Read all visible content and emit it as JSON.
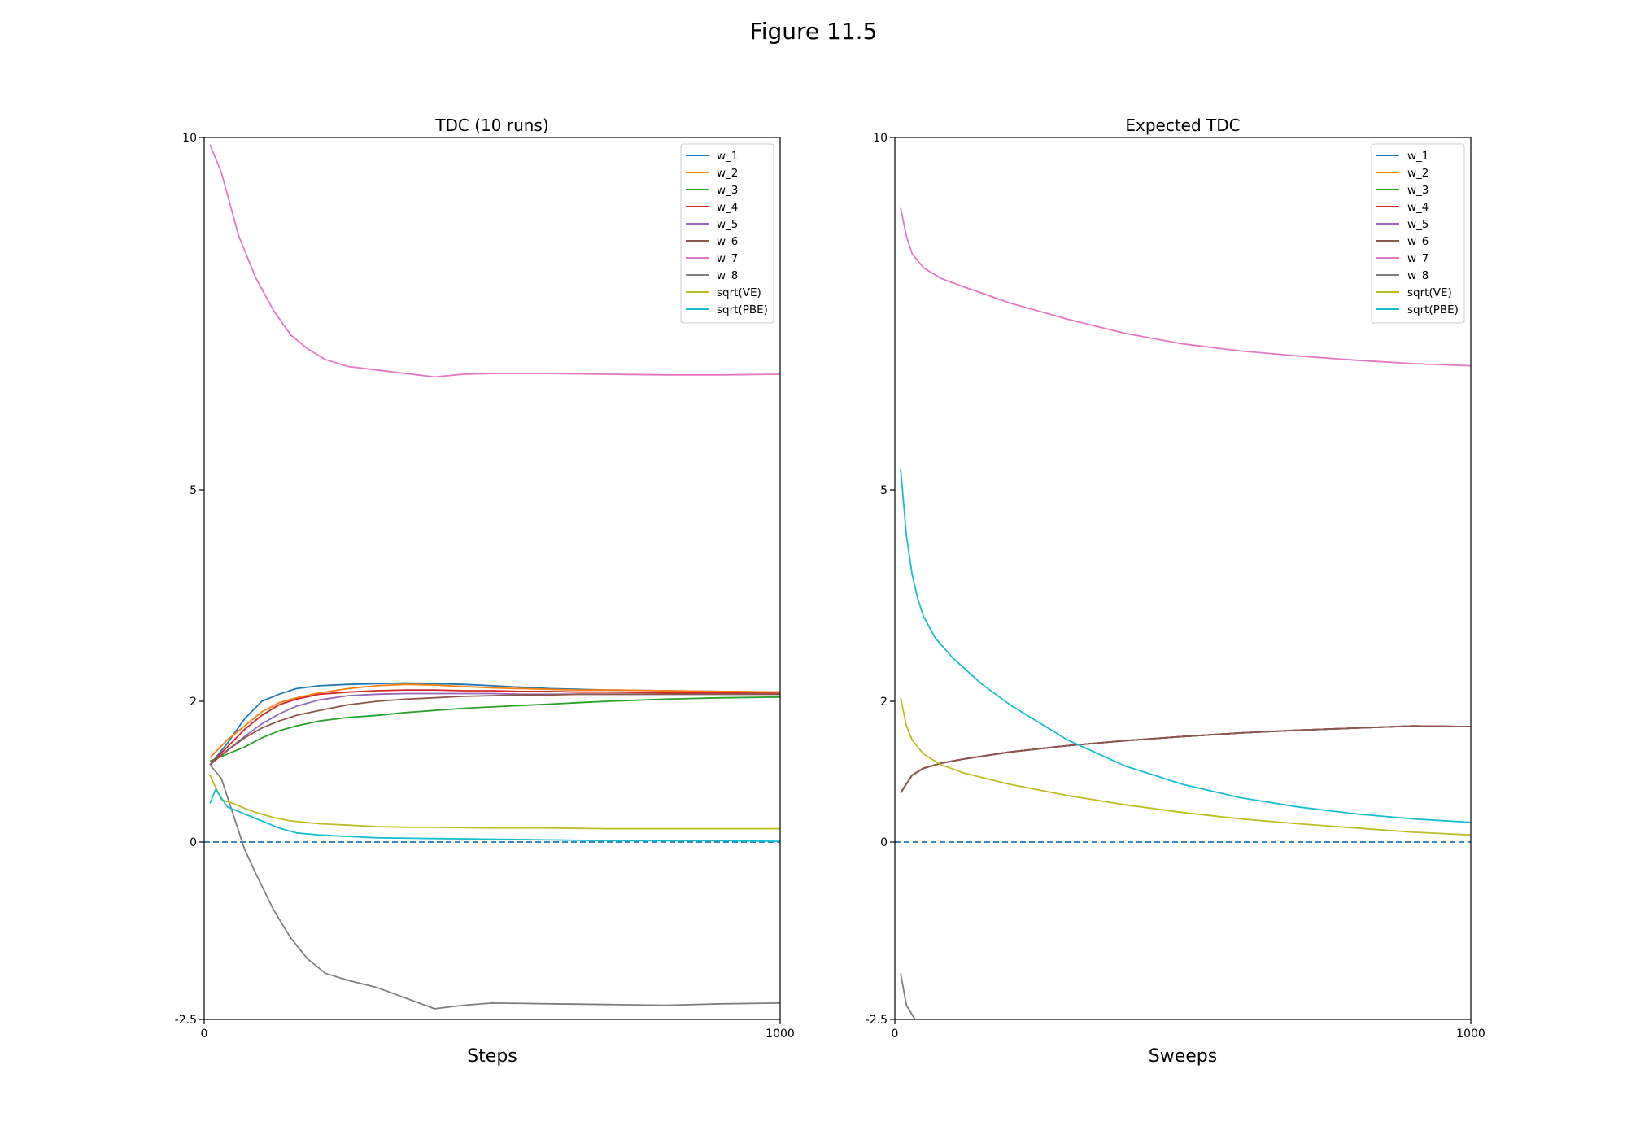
{
  "figure": {
    "title": "Figure 11.5"
  },
  "colors": {
    "w_1": "#1f77b4",
    "w_2": "#ff7f0e",
    "w_3": "#2ca02c",
    "w_4": "#d62728",
    "w_5": "#9467bd",
    "w_6": "#8c564b",
    "w_7": "#e377c2",
    "w_8": "#7f7f7f",
    "sqrt(VE)": "#bcbd22",
    "sqrt(PBE)": "#17becf",
    "zero_line": "#1f77b4"
  },
  "chart_data": [
    {
      "type": "line",
      "title": "TDC (10 runs)",
      "xlabel": "Steps",
      "ylabel": "",
      "xlim": [
        0,
        1000
      ],
      "ylim": [
        -2.5,
        10
      ],
      "xticks": [
        0,
        1000
      ],
      "yticks": [
        -2.5,
        0,
        2,
        5,
        10
      ],
      "ytick_labels": [
        "-2.5",
        "0",
        "2",
        "5",
        "10"
      ],
      "legend": [
        "w_1",
        "w_2",
        "w_3",
        "w_4",
        "w_5",
        "w_6",
        "w_7",
        "w_8",
        "sqrt(VE)",
        "sqrt(PBE)"
      ],
      "legend_position": "top-right",
      "reference_line": {
        "y": 0,
        "style": "dashed"
      },
      "series": [
        {
          "name": "w_1",
          "x": [
            10,
            40,
            70,
            100,
            130,
            160,
            200,
            250,
            300,
            350,
            400,
            450,
            500,
            550,
            600,
            650,
            700,
            800,
            900,
            1000
          ],
          "values": [
            1.1,
            1.4,
            1.75,
            2.0,
            2.1,
            2.18,
            2.22,
            2.24,
            2.25,
            2.26,
            2.25,
            2.24,
            2.22,
            2.2,
            2.18,
            2.17,
            2.16,
            2.15,
            2.14,
            2.13
          ]
        },
        {
          "name": "w_2",
          "x": [
            10,
            40,
            70,
            100,
            130,
            160,
            200,
            250,
            300,
            350,
            400,
            450,
            500,
            550,
            600,
            650,
            700,
            800,
            900,
            1000
          ],
          "values": [
            1.2,
            1.45,
            1.65,
            1.85,
            1.98,
            2.05,
            2.12,
            2.18,
            2.22,
            2.24,
            2.23,
            2.21,
            2.19,
            2.18,
            2.17,
            2.16,
            2.16,
            2.15,
            2.14,
            2.13
          ]
        },
        {
          "name": "w_3",
          "x": [
            10,
            40,
            70,
            100,
            130,
            160,
            200,
            250,
            300,
            350,
            400,
            450,
            500,
            550,
            600,
            650,
            700,
            800,
            900,
            1000
          ],
          "values": [
            1.15,
            1.25,
            1.35,
            1.48,
            1.58,
            1.65,
            1.72,
            1.77,
            1.8,
            1.84,
            1.87,
            1.9,
            1.92,
            1.94,
            1.96,
            1.98,
            2.0,
            2.03,
            2.05,
            2.06
          ]
        },
        {
          "name": "w_4",
          "x": [
            10,
            40,
            70,
            100,
            130,
            160,
            200,
            250,
            300,
            350,
            400,
            450,
            500,
            550,
            600,
            650,
            700,
            800,
            900,
            1000
          ],
          "values": [
            1.1,
            1.35,
            1.6,
            1.8,
            1.95,
            2.03,
            2.1,
            2.13,
            2.15,
            2.16,
            2.16,
            2.15,
            2.15,
            2.14,
            2.14,
            2.13,
            2.13,
            2.12,
            2.12,
            2.11
          ]
        },
        {
          "name": "w_5",
          "x": [
            10,
            40,
            70,
            100,
            130,
            160,
            200,
            250,
            300,
            350,
            400,
            450,
            500,
            550,
            600,
            650,
            700,
            800,
            900,
            1000
          ],
          "values": [
            1.1,
            1.3,
            1.5,
            1.68,
            1.82,
            1.93,
            2.02,
            2.08,
            2.1,
            2.11,
            2.11,
            2.11,
            2.11,
            2.1,
            2.1,
            2.1,
            2.1,
            2.1,
            2.1,
            2.1
          ]
        },
        {
          "name": "w_6",
          "x": [
            10,
            40,
            70,
            100,
            130,
            160,
            200,
            250,
            300,
            350,
            400,
            450,
            500,
            550,
            600,
            650,
            700,
            800,
            900,
            1000
          ],
          "values": [
            1.1,
            1.3,
            1.48,
            1.62,
            1.72,
            1.8,
            1.87,
            1.95,
            2.0,
            2.03,
            2.05,
            2.07,
            2.08,
            2.09,
            2.09,
            2.1,
            2.1,
            2.1,
            2.1,
            2.1
          ]
        },
        {
          "name": "w_7",
          "x": [
            10,
            30,
            60,
            90,
            120,
            150,
            180,
            210,
            250,
            300,
            350,
            400,
            450,
            500,
            600,
            700,
            800,
            900,
            1000
          ],
          "values": [
            9.9,
            9.5,
            8.6,
            8.0,
            7.55,
            7.2,
            7.0,
            6.85,
            6.75,
            6.7,
            6.65,
            6.6,
            6.64,
            6.65,
            6.65,
            6.64,
            6.63,
            6.63,
            6.64
          ]
        },
        {
          "name": "w_8",
          "x": [
            10,
            30,
            50,
            70,
            90,
            120,
            150,
            180,
            210,
            250,
            300,
            350,
            400,
            450,
            500,
            600,
            700,
            800,
            900,
            1000
          ],
          "values": [
            1.1,
            0.9,
            0.4,
            -0.1,
            -0.45,
            -0.95,
            -1.35,
            -1.65,
            -1.85,
            -1.95,
            -2.05,
            -2.2,
            -2.35,
            -2.3,
            -2.27,
            -2.28,
            -2.29,
            -2.3,
            -2.28,
            -2.27
          ]
        },
        {
          "name": "sqrt(VE)",
          "x": [
            10,
            30,
            50,
            70,
            90,
            120,
            150,
            200,
            250,
            300,
            350,
            400,
            500,
            600,
            700,
            800,
            900,
            1000
          ],
          "values": [
            0.95,
            0.6,
            0.55,
            0.48,
            0.42,
            0.35,
            0.3,
            0.26,
            0.24,
            0.22,
            0.21,
            0.21,
            0.2,
            0.2,
            0.19,
            0.19,
            0.19,
            0.19
          ]
        },
        {
          "name": "sqrt(PBE)",
          "x": [
            10,
            20,
            40,
            70,
            100,
            130,
            160,
            200,
            250,
            300,
            400,
            500,
            600,
            700,
            800,
            900,
            1000
          ],
          "values": [
            0.55,
            0.75,
            0.5,
            0.4,
            0.3,
            0.2,
            0.13,
            0.1,
            0.08,
            0.06,
            0.05,
            0.04,
            0.03,
            0.02,
            0.02,
            0.02,
            0.01
          ]
        }
      ]
    },
    {
      "type": "line",
      "title": "Expected TDC",
      "xlabel": "Sweeps",
      "ylabel": "",
      "xlim": [
        0,
        1000
      ],
      "ylim": [
        -2.5,
        10
      ],
      "xticks": [
        0,
        1000
      ],
      "yticks": [
        -2.5,
        0,
        2,
        5,
        10
      ],
      "ytick_labels": [
        "-2.5",
        "0",
        "2",
        "5",
        "10"
      ],
      "legend": [
        "w_1",
        "w_2",
        "w_3",
        "w_4",
        "w_5",
        "w_6",
        "w_7",
        "w_8",
        "sqrt(VE)",
        "sqrt(PBE)"
      ],
      "legend_position": "top-right",
      "reference_line": {
        "y": 0,
        "style": "dashed"
      },
      "series": [
        {
          "name": "w_1",
          "x": [
            10,
            30,
            50,
            80,
            120,
            200,
            300,
            400,
            500,
            600,
            700,
            800,
            900,
            1000
          ],
          "values": [
            0.7,
            0.95,
            1.05,
            1.12,
            1.18,
            1.28,
            1.37,
            1.44,
            1.5,
            1.55,
            1.59,
            1.62,
            1.65,
            1.64
          ]
        },
        {
          "name": "w_2",
          "x": [
            10,
            30,
            50,
            80,
            120,
            200,
            300,
            400,
            500,
            600,
            700,
            800,
            900,
            1000
          ],
          "values": [
            0.7,
            0.95,
            1.05,
            1.12,
            1.18,
            1.28,
            1.37,
            1.44,
            1.5,
            1.55,
            1.59,
            1.62,
            1.65,
            1.64
          ]
        },
        {
          "name": "w_3",
          "x": [
            10,
            30,
            50,
            80,
            120,
            200,
            300,
            400,
            500,
            600,
            700,
            800,
            900,
            1000
          ],
          "values": [
            0.7,
            0.95,
            1.05,
            1.12,
            1.18,
            1.28,
            1.37,
            1.44,
            1.5,
            1.55,
            1.59,
            1.62,
            1.65,
            1.64
          ]
        },
        {
          "name": "w_4",
          "x": [
            10,
            30,
            50,
            80,
            120,
            200,
            300,
            400,
            500,
            600,
            700,
            800,
            900,
            1000
          ],
          "values": [
            0.7,
            0.95,
            1.05,
            1.12,
            1.18,
            1.28,
            1.37,
            1.44,
            1.5,
            1.55,
            1.59,
            1.62,
            1.65,
            1.64
          ]
        },
        {
          "name": "w_5",
          "x": [
            10,
            30,
            50,
            80,
            120,
            200,
            300,
            400,
            500,
            600,
            700,
            800,
            900,
            1000
          ],
          "values": [
            0.7,
            0.95,
            1.05,
            1.12,
            1.18,
            1.28,
            1.37,
            1.44,
            1.5,
            1.55,
            1.59,
            1.62,
            1.65,
            1.64
          ]
        },
        {
          "name": "w_6",
          "x": [
            10,
            30,
            50,
            80,
            120,
            200,
            300,
            400,
            500,
            600,
            700,
            800,
            900,
            1000
          ],
          "values": [
            0.7,
            0.95,
            1.05,
            1.12,
            1.18,
            1.28,
            1.37,
            1.44,
            1.5,
            1.55,
            1.59,
            1.62,
            1.65,
            1.64
          ]
        },
        {
          "name": "w_7",
          "x": [
            10,
            20,
            30,
            50,
            80,
            120,
            200,
            300,
            400,
            500,
            600,
            700,
            800,
            900,
            1000
          ],
          "values": [
            9.0,
            8.6,
            8.35,
            8.15,
            8.0,
            7.88,
            7.65,
            7.42,
            7.22,
            7.07,
            6.97,
            6.9,
            6.84,
            6.79,
            6.76
          ]
        },
        {
          "name": "w_8",
          "x": [
            10,
            20,
            35
          ],
          "values": [
            -1.85,
            -2.3,
            -2.5
          ]
        },
        {
          "name": "sqrt(VE)",
          "x": [
            10,
            20,
            30,
            50,
            80,
            120,
            200,
            300,
            400,
            500,
            600,
            700,
            800,
            900,
            1000
          ],
          "values": [
            2.05,
            1.65,
            1.45,
            1.25,
            1.1,
            0.98,
            0.82,
            0.66,
            0.53,
            0.42,
            0.33,
            0.26,
            0.2,
            0.14,
            0.1
          ]
        },
        {
          "name": "sqrt(PBE)",
          "x": [
            10,
            20,
            30,
            40,
            50,
            70,
            100,
            150,
            200,
            300,
            400,
            500,
            600,
            700,
            800,
            900,
            1000
          ],
          "values": [
            5.3,
            4.35,
            3.8,
            3.45,
            3.2,
            2.9,
            2.62,
            2.25,
            1.95,
            1.45,
            1.08,
            0.82,
            0.63,
            0.5,
            0.4,
            0.33,
            0.28
          ]
        }
      ]
    }
  ]
}
